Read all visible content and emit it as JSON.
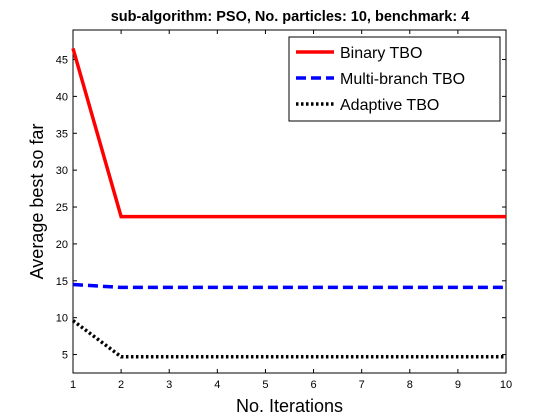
{
  "chart_data": {
    "type": "line",
    "title": "sub-algorithm: PSO, No. particles: 10, benchmark: 4",
    "xlabel": "No. Iterations",
    "ylabel": "Average best so far",
    "x": [
      1,
      2,
      3,
      4,
      5,
      6,
      7,
      8,
      9,
      10
    ],
    "xlim": [
      1,
      10
    ],
    "ylim": [
      2.5,
      49
    ],
    "xticks": [
      1,
      2,
      3,
      4,
      5,
      6,
      7,
      8,
      9,
      10
    ],
    "yticks": [
      5,
      10,
      15,
      20,
      25,
      30,
      35,
      40,
      45
    ],
    "grid": false,
    "legend_position": "top-right",
    "series": [
      {
        "name": "Binary TBO",
        "color": "#ff0000",
        "style": "solid",
        "values": [
          46.5,
          23.7,
          23.7,
          23.7,
          23.7,
          23.7,
          23.7,
          23.7,
          23.7,
          23.7
        ]
      },
      {
        "name": "Multi-branch TBO",
        "color": "#0000ff",
        "style": "dashed",
        "values": [
          14.5,
          14.1,
          14.1,
          14.1,
          14.1,
          14.1,
          14.1,
          14.1,
          14.1,
          14.1
        ]
      },
      {
        "name": "Adaptive TBO",
        "color": "#000000",
        "style": "dotted",
        "values": [
          9.6,
          4.7,
          4.7,
          4.7,
          4.7,
          4.7,
          4.7,
          4.7,
          4.7,
          4.7
        ]
      }
    ]
  }
}
